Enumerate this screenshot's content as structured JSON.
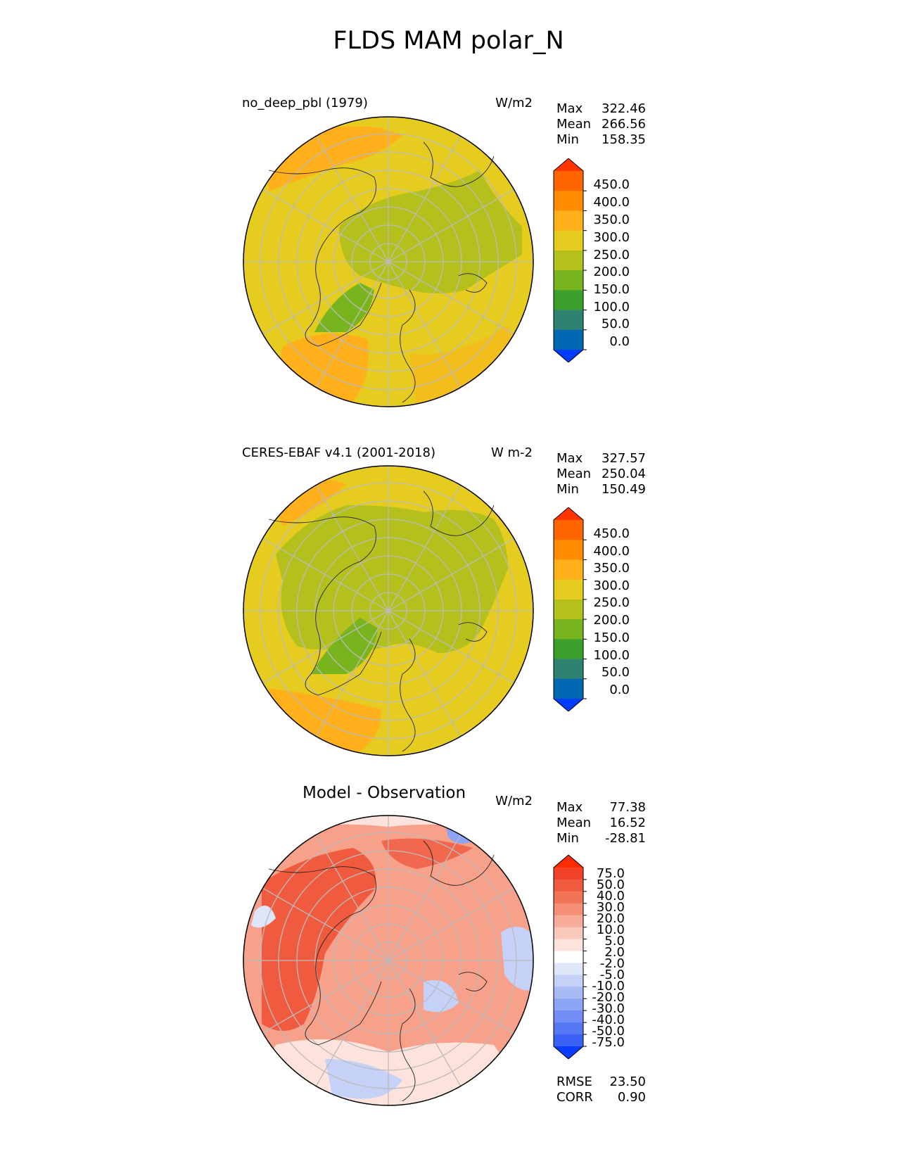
{
  "title": "FLDS MAM polar_N",
  "panels": [
    {
      "left_title": "no_deep_pbl (1979)",
      "units": "W/m2",
      "stats": [
        {
          "label": "Max",
          "value": "322.46"
        },
        {
          "label": "Mean",
          "value": "266.56"
        },
        {
          "label": "Min",
          "value": "158.35"
        }
      ],
      "colorbar_labels": [
        "450.0",
        "400.0",
        "350.0",
        "300.0",
        "250.0",
        "200.0",
        "150.0",
        "100.0",
        "50.0",
        "0.0"
      ],
      "colorbar_colors": [
        "#ff3300",
        "#ff6600",
        "#ff8c00",
        "#ffb01a",
        "#e6cc1f",
        "#b4c01b",
        "#78b41e",
        "#3c9f2b",
        "#2f8270",
        "#0068b0",
        "#003cff"
      ],
      "base_color": "#e6cc1f"
    },
    {
      "left_title": "CERES-EBAF v4.1 (2001-2018)",
      "units": "W m-2",
      "stats": [
        {
          "label": "Max",
          "value": "327.57"
        },
        {
          "label": "Mean",
          "value": "250.04"
        },
        {
          "label": "Min",
          "value": "150.49"
        }
      ],
      "colorbar_labels": [
        "450.0",
        "400.0",
        "350.0",
        "300.0",
        "250.0",
        "200.0",
        "150.0",
        "100.0",
        "50.0",
        "0.0"
      ],
      "colorbar_colors": [
        "#ff3300",
        "#ff6600",
        "#ff8c00",
        "#ffb01a",
        "#e6cc1f",
        "#b4c01b",
        "#78b41e",
        "#3c9f2b",
        "#2f8270",
        "#0068b0",
        "#003cff"
      ],
      "base_color": "#e6cc1f"
    },
    {
      "center_title": "Model - Observation",
      "units": "W/m2",
      "stats": [
        {
          "label": "Max",
          "value": "77.38"
        },
        {
          "label": "Mean",
          "value": "16.52"
        },
        {
          "label": "Min",
          "value": "-28.81"
        }
      ],
      "colorbar_labels": [
        "75.0",
        "50.0",
        "40.0",
        "30.0",
        "20.0",
        "10.0",
        "5.0",
        "2.0",
        "-2.0",
        "-5.0",
        "-10.0",
        "-20.0",
        "-30.0",
        "-40.0",
        "-50.0",
        "-75.0"
      ],
      "colorbar_colors": [
        "#ff2a00",
        "#f4412a",
        "#f05a3e",
        "#f27456",
        "#f59076",
        "#f8ab97",
        "#fbc8bc",
        "#fde3dc",
        "#ffffff",
        "#dfe6fa",
        "#c5d1f7",
        "#a8bbf5",
        "#8ca4f4",
        "#718cf3",
        "#5577f4",
        "#3a60f6",
        "#0a3cff"
      ],
      "base_color": "#f7a08a"
    }
  ],
  "bottom_stats": [
    {
      "label": "RMSE",
      "value": "23.50"
    },
    {
      "label": "CORR",
      "value": "0.90"
    }
  ]
}
